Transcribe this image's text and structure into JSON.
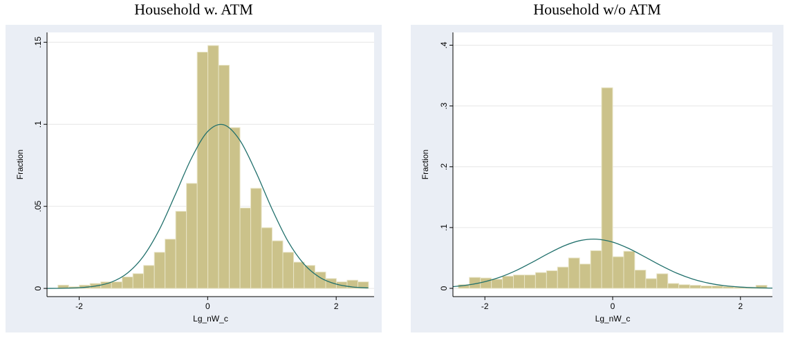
{
  "chart_data": [
    {
      "type": "histogram",
      "title": "Household w. ATM",
      "xlabel": "Lg_nW_c",
      "ylabel": "Fraction",
      "bins": [
        -2.33,
        -2.163,
        -1.997,
        -1.83,
        -1.663,
        -1.497,
        -1.33,
        -1.163,
        -0.997,
        -0.83,
        -0.663,
        -0.497,
        -0.33,
        -0.163,
        0.003,
        0.17,
        0.337,
        0.503,
        0.67,
        0.837,
        1.003,
        1.17,
        1.337,
        1.503,
        1.67,
        1.837,
        2.003,
        2.17,
        2.337,
        2.503
      ],
      "values": [
        0.002,
        0.001,
        0.002,
        0.003,
        0.004,
        0.004,
        0.007,
        0.009,
        0.014,
        0.022,
        0.03,
        0.047,
        0.064,
        0.144,
        0.148,
        0.136,
        0.098,
        0.049,
        0.061,
        0.037,
        0.029,
        0.022,
        0.016,
        0.014,
        0.01,
        0.006,
        0.004,
        0.005,
        0.004
      ],
      "color": "#cbc28a",
      "curve": {
        "color": "#1f6f6b",
        "x": [
          -2.5,
          -2.25,
          -2,
          -1.75,
          -1.5,
          -1.25,
          -1,
          -0.75,
          -0.5,
          -0.25,
          0,
          0.25,
          0.5,
          0.75,
          1,
          1.25,
          1.5,
          1.75,
          2,
          2.25,
          2.5
        ],
        "values": [
          0.0,
          0.0001,
          0.0004,
          0.0014,
          0.0038,
          0.0093,
          0.0196,
          0.036,
          0.0575,
          0.0795,
          0.0956,
          0.0997,
          0.0903,
          0.071,
          0.0485,
          0.0287,
          0.0148,
          0.0066,
          0.0026,
          0.0009,
          0.0003
        ]
      },
      "xlim": [
        -2.5,
        2.59
      ],
      "ylim": [
        -0.005,
        0.156
      ],
      "xticks": [
        -2,
        0,
        2
      ],
      "yticks": [
        0,
        {
          "value": 0.05,
          "label": ".05"
        },
        {
          "value": 0.1,
          "label": ".1"
        },
        {
          "value": 0.15,
          "label": ".15"
        }
      ],
      "grid": true
    },
    {
      "type": "histogram",
      "title": "Household w/o ATM",
      "xlabel": "Lg_nW_c",
      "ylabel": "Fraction",
      "bins": [
        -2.415,
        -2.243,
        -2.07,
        -1.898,
        -1.725,
        -1.553,
        -1.38,
        -1.208,
        -1.035,
        -0.863,
        -0.69,
        -0.518,
        -0.345,
        -0.173,
        0,
        0.173,
        0.345,
        0.518,
        0.69,
        0.863,
        1.035,
        1.208,
        1.38,
        1.553,
        1.725,
        1.898,
        2.07,
        2.243,
        2.415
      ],
      "values": [
        0.006,
        0.018,
        0.017,
        0.015,
        0.02,
        0.022,
        0.022,
        0.026,
        0.029,
        0.035,
        0.05,
        0.04,
        0.062,
        0.33,
        0.052,
        0.061,
        0.03,
        0.016,
        0.024,
        0.008,
        0.006,
        0.005,
        0.004,
        0.004,
        0.003,
        0.002,
        0.002,
        0.005
      ],
      "color": "#cbc28a",
      "curve": {
        "color": "#1f6f6b",
        "x": [
          -2.5,
          -2.25,
          -2,
          -1.75,
          -1.5,
          -1.25,
          -1,
          -0.75,
          -0.5,
          -0.25,
          0,
          0.25,
          0.5,
          0.75,
          1,
          1.25,
          1.5,
          1.75,
          2,
          2.25,
          2.5
        ],
        "values": [
          0.0028,
          0.0058,
          0.011,
          0.0189,
          0.0299,
          0.0434,
          0.0577,
          0.0704,
          0.0788,
          0.0809,
          0.0761,
          0.0657,
          0.052,
          0.0378,
          0.0251,
          0.0154,
          0.0086,
          0.0044,
          0.0021,
          0.0009,
          0.0004
        ]
      },
      "xlim": [
        -2.5,
        2.5
      ],
      "ylim": [
        -0.0136,
        0.421
      ],
      "xticks": [
        -2,
        0,
        2
      ],
      "yticks": [
        0,
        {
          "value": 0.1,
          "label": ".1"
        },
        {
          "value": 0.2,
          "label": ".2"
        },
        {
          "value": 0.3,
          "label": ".3"
        },
        {
          "value": 0.4,
          "label": ".4"
        }
      ],
      "grid": true
    }
  ]
}
